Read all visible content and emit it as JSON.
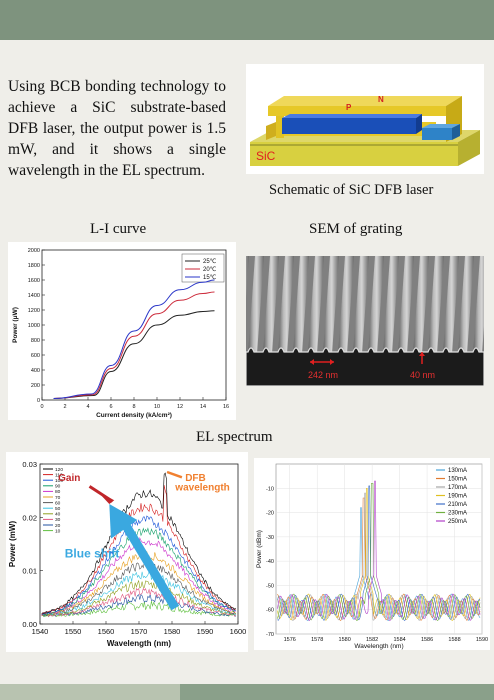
{
  "intro_text": "Using BCB bonding technology to achieve a SiC substrate-based DFB laser, the output power is 1.5 mW, and it shows a single wavelength in the EL spectrum.",
  "schematic": {
    "caption": "Schematic of SiC DFB laser",
    "label_p": "P",
    "label_n": "N",
    "label_sic": "SiC",
    "colors": {
      "substrate": "#d8d040",
      "metal": "#e6c828",
      "active": "#1a4fb8",
      "side": "#2e83c8"
    }
  },
  "li_caption": "L-I curve",
  "sem": {
    "caption": "SEM of grating",
    "label_period": "242 nm",
    "label_depth": "40 nm"
  },
  "el_caption": "EL spectrum",
  "chart_data": [
    {
      "type": "line",
      "xlabel": "Current density (kA/cm²)",
      "ylabel": "Power (μW)",
      "xlim": [
        0,
        16
      ],
      "ylim": [
        0,
        2000
      ],
      "xticks": [
        0,
        2,
        4,
        6,
        8,
        10,
        12,
        14,
        16
      ],
      "yticks": [
        0,
        200,
        400,
        600,
        800,
        1000,
        1200,
        1400,
        1600,
        1800,
        2000
      ],
      "legend": "top-right",
      "series": [
        {
          "name": "25℃",
          "color": "#222222",
          "x": [
            1,
            4.5,
            6,
            8,
            10,
            12,
            14,
            15
          ],
          "y": [
            20,
            60,
            380,
            750,
            1000,
            1130,
            1180,
            1190
          ]
        },
        {
          "name": "20℃",
          "color": "#cc2a3a",
          "x": [
            1,
            4.4,
            6,
            8,
            10,
            12,
            14,
            15
          ],
          "y": [
            20,
            70,
            420,
            850,
            1150,
            1330,
            1420,
            1440
          ]
        },
        {
          "name": "15℃",
          "color": "#2a36c8",
          "x": [
            1,
            4.3,
            6,
            8,
            10,
            12,
            14,
            15
          ],
          "y": [
            20,
            80,
            460,
            920,
            1260,
            1470,
            1570,
            1600
          ]
        }
      ]
    },
    {
      "type": "line",
      "xlabel": "Wavelength (nm)",
      "ylabel": "Power (mW)",
      "xlim": [
        1540,
        1600
      ],
      "ylim": [
        0,
        0.03
      ],
      "xticks": [
        1540,
        1550,
        1560,
        1570,
        1580,
        1590,
        1600
      ],
      "yticks": [
        0.0,
        0.01,
        0.02,
        0.03
      ],
      "legend": "top-left",
      "series_names": [
        "120",
        "110",
        "100",
        "90",
        "80",
        "70",
        "60",
        "50",
        "40",
        "30",
        "20",
        "10"
      ],
      "series_peaks": [
        0.0245,
        0.022,
        0.0195,
        0.0175,
        0.0155,
        0.013,
        0.011,
        0.0092,
        0.0075,
        0.006,
        0.0048,
        0.0035
      ],
      "series_colors": [
        "#000000",
        "#d42020",
        "#1a55d8",
        "#14a06a",
        "#cc33cc",
        "#e6a020",
        "#5a5a5a",
        "#3cc3e0",
        "#90a020",
        "#e05880",
        "#2050a0",
        "#60c040"
      ],
      "annotations": {
        "gain": "Gain",
        "dfb": "DFB wavelength",
        "blue_shift": "Blue shift"
      }
    },
    {
      "type": "line",
      "xlabel": "Wavelength (nm)",
      "ylabel": "Power (dBm)",
      "xlim": [
        1575,
        1590
      ],
      "ylim": [
        -70,
        0
      ],
      "xticks": [
        1576,
        1578,
        1580,
        1582,
        1584,
        1586,
        1588,
        1590
      ],
      "yticks": [
        -10,
        -20,
        -30,
        -40,
        -50,
        -60,
        -70
      ],
      "legend": "top-right",
      "series": [
        {
          "name": "130mA",
          "color": "#4aa3d8",
          "peak_x": 1581.2,
          "peak_y": -18
        },
        {
          "name": "150mA",
          "color": "#e07a30",
          "peak_x": 1581.4,
          "peak_y": -14
        },
        {
          "name": "170mA",
          "color": "#a6a6a6",
          "peak_x": 1581.5,
          "peak_y": -12
        },
        {
          "name": "190mA",
          "color": "#e0c020",
          "peak_x": 1581.6,
          "peak_y": -10
        },
        {
          "name": "210mA",
          "color": "#3e6fc8",
          "peak_x": 1581.8,
          "peak_y": -9
        },
        {
          "name": "230mA",
          "color": "#70b040",
          "peak_x": 1582.0,
          "peak_y": -8
        },
        {
          "name": "250mA",
          "color": "#b03ec8",
          "peak_x": 1582.2,
          "peak_y": -7
        }
      ]
    }
  ]
}
